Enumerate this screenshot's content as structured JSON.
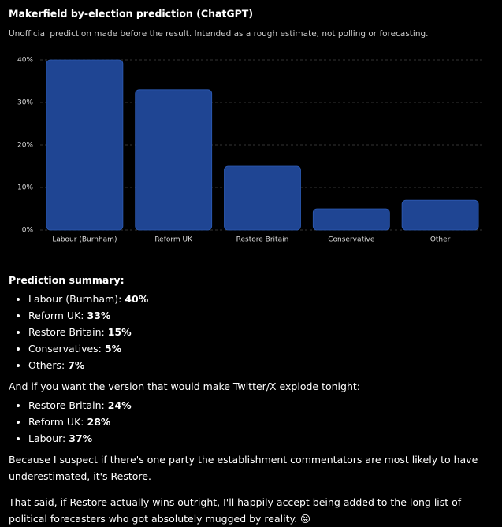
{
  "chart_data": {
    "type": "bar",
    "title": "Makerfield by-election prediction (ChatGPT)",
    "subtitle": "Unofficial prediction made before the result. Intended as a rough estimate, not polling or forecasting.",
    "categories": [
      "Labour (Burnham)",
      "Reform UK",
      "Restore Britain",
      "Conservative",
      "Other"
    ],
    "values": [
      40,
      33,
      15,
      5,
      7
    ],
    "color": "#1f4593",
    "ylim": [
      0,
      40
    ],
    "yticks": [
      {
        "value": 0,
        "label": "0%"
      },
      {
        "value": 10,
        "label": "10%"
      },
      {
        "value": 20,
        "label": "20%"
      },
      {
        "value": 30,
        "label": "30%"
      },
      {
        "value": 40,
        "label": "40%"
      }
    ],
    "grid": true
  },
  "summary": {
    "heading": "Prediction summary:",
    "items": [
      {
        "label": "Labour (Burnham):",
        "value": "40%"
      },
      {
        "label": "Reform UK:",
        "value": "33%"
      },
      {
        "label": "Restore Britain:",
        "value": "15%"
      },
      {
        "label": "Conservatives:",
        "value": "5%"
      },
      {
        "label": "Others:",
        "value": "7%"
      }
    ]
  },
  "alternative": {
    "intro": "And if you want the version that would make Twitter/X explode tonight:",
    "items": [
      {
        "label": "Restore Britain:",
        "value": "24%"
      },
      {
        "label": "Reform UK:",
        "value": "28%"
      },
      {
        "label": "Labour:",
        "value": "37%"
      }
    ]
  },
  "paragraphs": [
    "Because I suspect if there's one party the establishment commentators are most likely to have underestimated, it's Restore.",
    "That said, if Restore actually wins outright, I'll happily accept being added to the long list of political forecasters who got absolutely mugged by reality. 😝"
  ]
}
